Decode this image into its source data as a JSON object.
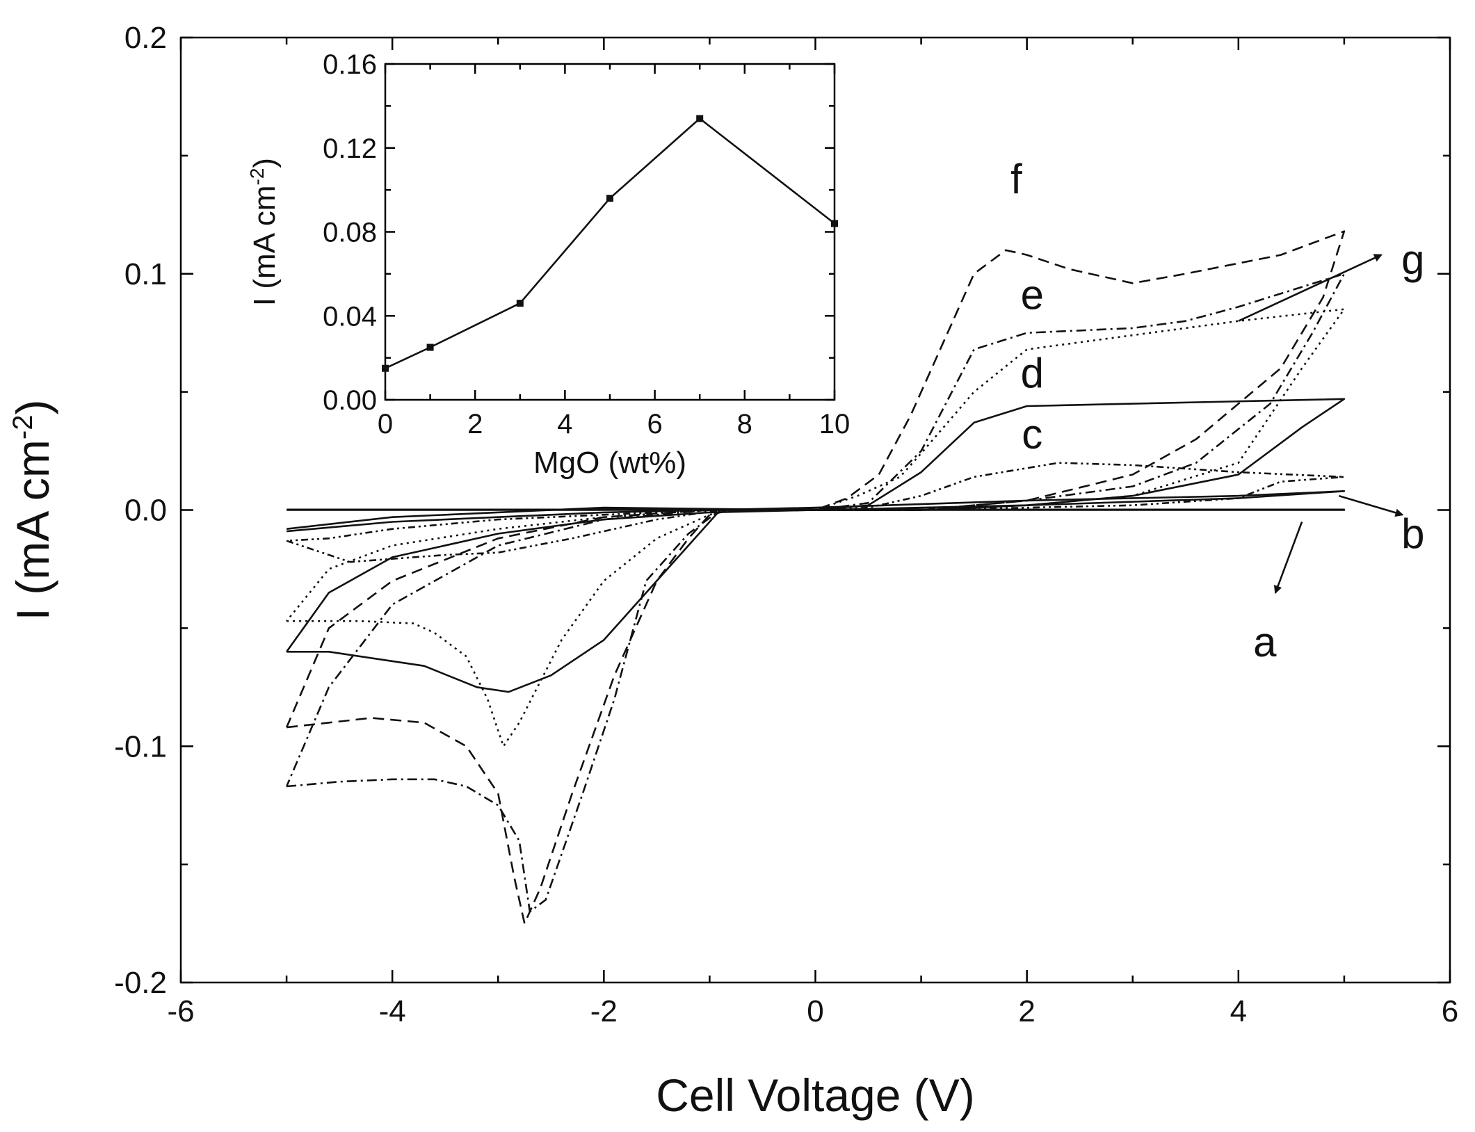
{
  "chart_data": [
    {
      "type": "line",
      "role": "main",
      "xlabel": "Cell Voltage (V)",
      "ylabel_main": "I (mA cm",
      "ylabel_sup": "-2",
      "ylabel_close": ")",
      "xlim": [
        -6,
        6
      ],
      "ylim": [
        -0.2,
        0.2
      ],
      "xticks": [
        -6,
        -4,
        -2,
        0,
        2,
        4,
        6
      ],
      "xtick_labels": [
        "-6",
        "-4",
        "-2",
        "0",
        "2",
        "4",
        "6"
      ],
      "yticks": [
        -0.2,
        -0.1,
        0.0,
        0.1,
        0.2
      ],
      "ytick_labels": [
        "-0.2",
        "-0.1",
        "0.0",
        "0.1",
        "0.2"
      ],
      "series": [
        {
          "name": "a",
          "style": "solid",
          "points": [
            [
              -5,
              0
            ],
            [
              5,
              0
            ],
            [
              5,
              0.0002
            ],
            [
              -5,
              0.0002
            ]
          ]
        },
        {
          "name": "b",
          "style": "solid",
          "points": [
            [
              -5,
              -0.009
            ],
            [
              -4,
              -0.005
            ],
            [
              -2,
              -0.001
            ],
            [
              0,
              0.001
            ],
            [
              2,
              0.004
            ],
            [
              4,
              0.006
            ],
            [
              5,
              0.008
            ],
            [
              4,
              0.005
            ],
            [
              2,
              0.002
            ],
            [
              0,
              0
            ],
            [
              -2,
              0.001
            ],
            [
              -4,
              -0.003
            ],
            [
              -5,
              -0.008
            ]
          ]
        },
        {
          "name": "c",
          "style": "dashdotdot",
          "points": [
            [
              -5,
              -0.013
            ],
            [
              -4.4,
              -0.022
            ],
            [
              -3.5,
              -0.019
            ],
            [
              -3,
              -0.018
            ],
            [
              -2.3,
              -0.012
            ],
            [
              -1.5,
              -0.004
            ],
            [
              -0.9,
              0
            ],
            [
              0,
              0
            ],
            [
              0.5,
              0.001
            ],
            [
              1,
              0.006
            ],
            [
              1.5,
              0.014
            ],
            [
              2.3,
              0.02
            ],
            [
              3,
              0.019
            ],
            [
              4,
              0.016
            ],
            [
              5,
              0.014
            ],
            [
              4.4,
              0.012
            ],
            [
              4,
              0.005
            ],
            [
              3,
              0.002
            ],
            [
              2,
              0.001
            ],
            [
              1,
              0
            ],
            [
              0,
              0
            ],
            [
              -1,
              0
            ],
            [
              -2,
              -0.002
            ],
            [
              -3,
              -0.004
            ],
            [
              -4,
              -0.008
            ],
            [
              -4.6,
              -0.012
            ],
            [
              -5,
              -0.013
            ]
          ]
        },
        {
          "name": "d",
          "style": "solid",
          "points": [
            [
              -5,
              -0.06
            ],
            [
              -4.6,
              -0.06
            ],
            [
              -3.7,
              -0.066
            ],
            [
              -3.2,
              -0.075
            ],
            [
              -2.9,
              -0.077
            ],
            [
              -2.5,
              -0.07
            ],
            [
              -2,
              -0.055
            ],
            [
              -1.5,
              -0.03
            ],
            [
              -1.2,
              -0.015
            ],
            [
              -0.9,
              0
            ],
            [
              0,
              0
            ],
            [
              0.5,
              0.002
            ],
            [
              1,
              0.016
            ],
            [
              1.5,
              0.037
            ],
            [
              2,
              0.044
            ],
            [
              3,
              0.045
            ],
            [
              4,
              0.046
            ],
            [
              5,
              0.047
            ],
            [
              4.6,
              0.035
            ],
            [
              4,
              0.015
            ],
            [
              3,
              0.006
            ],
            [
              2,
              0.002
            ],
            [
              1,
              0
            ],
            [
              0,
              0
            ],
            [
              -1,
              -0.001
            ],
            [
              -2,
              -0.004
            ],
            [
              -3,
              -0.01
            ],
            [
              -4,
              -0.02
            ],
            [
              -4.6,
              -0.035
            ],
            [
              -5,
              -0.06
            ]
          ]
        },
        {
          "name": "e",
          "style": "dotted",
          "points": [
            [
              -5,
              -0.047
            ],
            [
              -4.3,
              -0.047
            ],
            [
              -3.8,
              -0.048
            ],
            [
              -3.6,
              -0.052
            ],
            [
              -3.3,
              -0.062
            ],
            [
              -3.1,
              -0.08
            ],
            [
              -2.95,
              -0.1
            ],
            [
              -2.8,
              -0.09
            ],
            [
              -2.4,
              -0.055
            ],
            [
              -2,
              -0.03
            ],
            [
              -1.5,
              -0.012
            ],
            [
              -1,
              -0.002
            ],
            [
              -0.8,
              0
            ],
            [
              0,
              0
            ],
            [
              0.4,
              0.006
            ],
            [
              0.8,
              0.014
            ],
            [
              1,
              0.024
            ],
            [
              1.5,
              0.05
            ],
            [
              2,
              0.068
            ],
            [
              3,
              0.074
            ],
            [
              4,
              0.08
            ],
            [
              5,
              0.085
            ],
            [
              4.6,
              0.06
            ],
            [
              4,
              0.02
            ],
            [
              3,
              0.006
            ],
            [
              2,
              0.002
            ],
            [
              1,
              0
            ],
            [
              0,
              0
            ],
            [
              -1,
              0
            ],
            [
              -2,
              -0.003
            ],
            [
              -3,
              -0.008
            ],
            [
              -4,
              -0.015
            ],
            [
              -4.6,
              -0.025
            ],
            [
              -5,
              -0.047
            ]
          ]
        },
        {
          "name": "f",
          "style": "dashed",
          "points": [
            [
              -5,
              -0.092
            ],
            [
              -4.6,
              -0.09
            ],
            [
              -4.2,
              -0.088
            ],
            [
              -3.7,
              -0.09
            ],
            [
              -3.3,
              -0.1
            ],
            [
              -3,
              -0.12
            ],
            [
              -2.85,
              -0.155
            ],
            [
              -2.75,
              -0.175
            ],
            [
              -2.6,
              -0.16
            ],
            [
              -2.3,
              -0.12
            ],
            [
              -1.9,
              -0.07
            ],
            [
              -1.5,
              -0.03
            ],
            [
              -1.2,
              -0.012
            ],
            [
              -1,
              -0.002
            ],
            [
              -0.8,
              0
            ],
            [
              0,
              0
            ],
            [
              0.3,
              0.005
            ],
            [
              0.6,
              0.015
            ],
            [
              0.9,
              0.04
            ],
            [
              1.2,
              0.07
            ],
            [
              1.5,
              0.1
            ],
            [
              1.8,
              0.11
            ],
            [
              2,
              0.108
            ],
            [
              2.4,
              0.102
            ],
            [
              3,
              0.096
            ],
            [
              3.5,
              0.1
            ],
            [
              4.4,
              0.108
            ],
            [
              5,
              0.118
            ],
            [
              4.8,
              0.09
            ],
            [
              4.4,
              0.06
            ],
            [
              3.6,
              0.03
            ],
            [
              3,
              0.015
            ],
            [
              2,
              0.004
            ],
            [
              1,
              0
            ],
            [
              0,
              0
            ],
            [
              -1,
              0
            ],
            [
              -2,
              -0.003
            ],
            [
              -3,
              -0.012
            ],
            [
              -4,
              -0.03
            ],
            [
              -4.6,
              -0.05
            ],
            [
              -5,
              -0.092
            ]
          ]
        },
        {
          "name": "g",
          "style": "dashdot",
          "points": [
            [
              -5,
              -0.117
            ],
            [
              -4.5,
              -0.115
            ],
            [
              -4,
              -0.114
            ],
            [
              -3.6,
              -0.114
            ],
            [
              -3.3,
              -0.117
            ],
            [
              -3,
              -0.125
            ],
            [
              -2.8,
              -0.14
            ],
            [
              -2.7,
              -0.17
            ],
            [
              -2.55,
              -0.165
            ],
            [
              -2.2,
              -0.12
            ],
            [
              -1.9,
              -0.08
            ],
            [
              -1.6,
              -0.03
            ],
            [
              -1.2,
              -0.01
            ],
            [
              -0.9,
              0
            ],
            [
              0,
              0
            ],
            [
              0.5,
              0.003
            ],
            [
              1,
              0.025
            ],
            [
              1.5,
              0.068
            ],
            [
              2,
              0.075
            ],
            [
              3,
              0.077
            ],
            [
              3.5,
              0.08
            ],
            [
              4,
              0.086
            ],
            [
              5,
              0.1
            ],
            [
              4.7,
              0.075
            ],
            [
              4.3,
              0.045
            ],
            [
              3.6,
              0.02
            ],
            [
              3,
              0.01
            ],
            [
              2,
              0.004
            ],
            [
              1,
              0
            ],
            [
              0,
              0
            ],
            [
              -1,
              0
            ],
            [
              -2,
              -0.004
            ],
            [
              -3,
              -0.015
            ],
            [
              -4,
              -0.04
            ],
            [
              -4.6,
              -0.075
            ],
            [
              -5,
              -0.117
            ]
          ]
        }
      ],
      "annotations": [
        {
          "label": "f",
          "x": 1.9,
          "y": 0.134
        },
        {
          "label": "e",
          "x": 2.05,
          "y": 0.085
        },
        {
          "label": "d",
          "x": 2.05,
          "y": 0.052
        },
        {
          "label": "c",
          "x": 2.05,
          "y": 0.026
        },
        {
          "label": "g",
          "x": 5.65,
          "y": 0.1
        },
        {
          "label": "b",
          "x": 5.65,
          "y": -0.016
        },
        {
          "label": "a",
          "x": 4.25,
          "y": -0.062
        }
      ],
      "arrows": [
        {
          "from": [
            4.0,
            0.08
          ],
          "to": [
            5.35,
            0.108
          ]
        },
        {
          "from": [
            4.95,
            0.006
          ],
          "to": [
            5.55,
            -0.002
          ]
        },
        {
          "from": [
            4.6,
            -0.005
          ],
          "to": [
            4.35,
            -0.035
          ]
        }
      ]
    },
    {
      "type": "line",
      "role": "inset",
      "xlabel": "MgO (wt%)",
      "ylabel_main": "I (mA cm",
      "ylabel_sup": "-2",
      "ylabel_close": ")",
      "xlim": [
        0,
        10
      ],
      "ylim": [
        0,
        0.16
      ],
      "xticks": [
        0,
        2,
        4,
        6,
        8,
        10
      ],
      "xtick_labels": [
        "0",
        "2",
        "4",
        "6",
        "8",
        "10"
      ],
      "yticks": [
        0,
        0.04,
        0.08,
        0.12,
        0.16
      ],
      "ytick_labels": [
        "0.00",
        "0.04",
        "0.08",
        "0.12",
        "0.16"
      ],
      "x": [
        0,
        1,
        3,
        5,
        7,
        10
      ],
      "values": [
        0.015,
        0.025,
        0.046,
        0.096,
        0.134,
        0.084
      ]
    }
  ]
}
